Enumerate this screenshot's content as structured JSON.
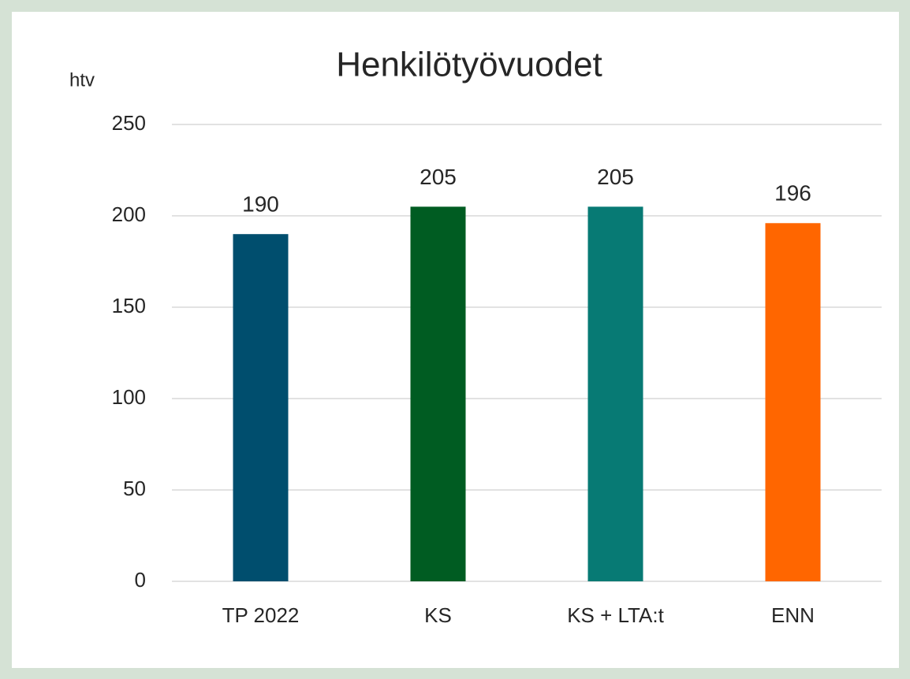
{
  "chart_data": {
    "type": "bar",
    "title": "Henkilötyövuodet",
    "ylabel": "htv",
    "categories": [
      "TP 2022",
      "KS",
      "KS + LTA:t",
      "ENN"
    ],
    "values": [
      190,
      205,
      205,
      196
    ],
    "colors": [
      "#004e6e",
      "#005c22",
      "#077a74",
      "#ff6600"
    ],
    "ylim": [
      0,
      250
    ],
    "yticks": [
      0,
      50,
      100,
      150,
      200,
      250
    ],
    "grid": true
  }
}
